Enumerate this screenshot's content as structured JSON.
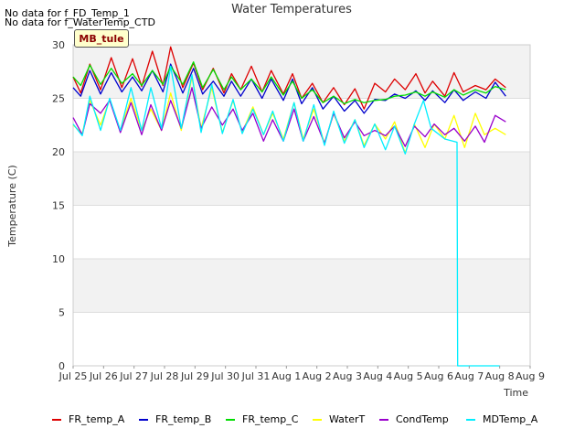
{
  "no_data_messages": [
    "No data for f_FD_Temp_1",
    "No data for f_WaterTemp_CTD"
  ],
  "site_label": "MB_tule",
  "chart_data": {
    "type": "line",
    "title": "Water Temperatures",
    "xlabel": "Time",
    "ylabel": "Temperature (C)",
    "ylim": [
      0,
      30
    ],
    "xlim": [
      0,
      15
    ],
    "x_tick_labels": [
      "Jul 25",
      "Jul 26",
      "Jul 27",
      "Jul 28",
      "Jul 29",
      "Jul 30",
      "Jul 31",
      "Aug 1",
      "Aug 2",
      "Aug 3",
      "Aug 4",
      "Aug 5",
      "Aug 6",
      "Aug 7",
      "Aug 8",
      "Aug 9"
    ],
    "y_ticks": [
      0,
      5,
      10,
      15,
      20,
      25,
      30
    ],
    "background_bands": "alternating grey / white every 5 units",
    "x_units": "days since Jul 25",
    "legend_position": "bottom",
    "series": [
      {
        "name": "FR_temp_A",
        "color": "#dd0000",
        "x": [
          0,
          0.25,
          0.55,
          0.9,
          1.25,
          1.6,
          1.95,
          2.25,
          2.6,
          2.95,
          3.2,
          3.6,
          3.95,
          4.25,
          4.6,
          4.95,
          5.2,
          5.5,
          5.85,
          6.2,
          6.5,
          6.9,
          7.2,
          7.5,
          7.85,
          8.2,
          8.55,
          8.9,
          9.25,
          9.55,
          9.9,
          10.25,
          10.55,
          10.9,
          11.25,
          11.55,
          11.8,
          12.2,
          12.5,
          12.8,
          13.2,
          13.55,
          13.85,
          14.2
        ],
        "y": [
          27,
          25.5,
          28.2,
          25.8,
          28.8,
          26,
          28.7,
          26.1,
          29.4,
          26.2,
          29.8,
          26,
          28.3,
          25.8,
          27.8,
          25.5,
          27.3,
          25.8,
          28,
          25.6,
          27.6,
          25.4,
          27.3,
          25,
          26.4,
          24.6,
          26,
          24.4,
          25.9,
          24,
          26.4,
          25.6,
          26.8,
          25.8,
          27.3,
          25.5,
          26.6,
          25.2,
          27.4,
          25.6,
          26.2,
          25.8,
          26.8,
          26
        ]
      },
      {
        "name": "FR_temp_B",
        "color": "#0000cc",
        "x": [
          0,
          0.25,
          0.55,
          0.9,
          1.25,
          1.6,
          1.95,
          2.25,
          2.6,
          2.95,
          3.2,
          3.6,
          3.95,
          4.25,
          4.6,
          4.95,
          5.2,
          5.5,
          5.85,
          6.2,
          6.5,
          6.9,
          7.2,
          7.5,
          7.85,
          8.2,
          8.55,
          8.9,
          9.25,
          9.55,
          9.9,
          10.25,
          10.55,
          10.9,
          11.25,
          11.55,
          11.8,
          12.2,
          12.5,
          12.8,
          13.2,
          13.55,
          13.85,
          14.2
        ],
        "y": [
          26,
          25.2,
          27.6,
          25.4,
          27.4,
          25.6,
          27,
          25.7,
          27.6,
          25.6,
          28.2,
          25.5,
          27.8,
          25.4,
          26.6,
          25.2,
          26.6,
          25.2,
          26.8,
          25,
          26.8,
          24.8,
          26.8,
          24.5,
          26,
          24,
          25.2,
          23.8,
          24.8,
          23.6,
          24.9,
          24.8,
          25.4,
          25,
          25.7,
          24.8,
          25.7,
          24.6,
          25.8,
          24.8,
          25.6,
          25,
          26.5,
          25.2
        ]
      },
      {
        "name": "FR_temp_C",
        "color": "#00dd00",
        "x": [
          0,
          0.25,
          0.55,
          0.9,
          1.25,
          1.6,
          1.95,
          2.25,
          2.6,
          2.95,
          3.2,
          3.6,
          3.95,
          4.25,
          4.6,
          4.95,
          5.2,
          5.5,
          5.85,
          6.2,
          6.5,
          6.9,
          7.2,
          7.5,
          7.85,
          8.2,
          8.55,
          8.9,
          9.25,
          9.55,
          9.9,
          10.25,
          10.55,
          10.9,
          11.25,
          11.55,
          11.8,
          12.2,
          12.5,
          12.8,
          13.2,
          13.55,
          13.85,
          14.2
        ],
        "y": [
          27,
          26.2,
          28.1,
          26.3,
          27.8,
          26.4,
          27.3,
          26.2,
          27.6,
          26.3,
          28,
          26.3,
          28.4,
          26,
          27.7,
          25.8,
          27,
          25.8,
          26.8,
          25.6,
          27,
          25.3,
          26.6,
          25,
          25.8,
          24.6,
          25.2,
          24.5,
          24.9,
          24.6,
          24.8,
          24.9,
          25.2,
          25.3,
          25.6,
          25.2,
          25.6,
          25.1,
          25.8,
          25.3,
          25.8,
          25.5,
          26.1,
          25.8
        ]
      },
      {
        "name": "WaterT",
        "color": "#ffff00",
        "x": [
          0,
          0.3,
          0.55,
          0.9,
          1.2,
          1.55,
          1.9,
          2.25,
          2.55,
          2.9,
          3.2,
          3.55,
          3.9,
          4.2,
          4.55,
          4.9,
          5.25,
          5.55,
          5.9,
          6.25,
          6.55,
          6.9,
          7.25,
          7.55,
          7.9,
          8.25,
          8.55,
          8.9,
          9.25,
          9.55,
          9.9,
          10.25,
          10.55,
          10.9,
          11.2,
          11.55,
          11.85,
          12.2,
          12.5,
          12.85,
          13.2,
          13.5,
          13.85,
          14.2
        ],
        "y": [
          22.5,
          21.7,
          24.8,
          22.5,
          24.9,
          22,
          25,
          22,
          24,
          22,
          25.5,
          22,
          27,
          22.2,
          26,
          21.8,
          24.8,
          21.8,
          24.2,
          21.6,
          23.6,
          21.2,
          24.6,
          21.2,
          24,
          20.8,
          23.6,
          21,
          23,
          20.6,
          22.6,
          21.2,
          22.8,
          19.9,
          22.6,
          20.4,
          22.6,
          21.2,
          23.4,
          20.4,
          23.6,
          21.6,
          22.2,
          21.6
        ]
      },
      {
        "name": "CondTemp",
        "color": "#9900cc",
        "x": [
          0,
          0.3,
          0.55,
          0.9,
          1.2,
          1.55,
          1.9,
          2.25,
          2.55,
          2.9,
          3.2,
          3.55,
          3.9,
          4.2,
          4.55,
          4.9,
          5.25,
          5.55,
          5.9,
          6.25,
          6.55,
          6.9,
          7.25,
          7.55,
          7.9,
          8.25,
          8.55,
          8.9,
          9.25,
          9.55,
          9.9,
          10.25,
          10.55,
          10.9,
          11.2,
          11.55,
          11.85,
          12.2,
          12.5,
          12.85,
          13.2,
          13.5,
          13.85,
          14.2
        ],
        "y": [
          23.2,
          21.6,
          24.5,
          23.6,
          24.8,
          21.8,
          24.6,
          21.6,
          24.4,
          22,
          24.8,
          22.2,
          26,
          22.2,
          24.2,
          22.5,
          24,
          22,
          23.6,
          21,
          23,
          21,
          24,
          21,
          23.3,
          20.8,
          23.6,
          21.3,
          22.8,
          21.5,
          22,
          21.5,
          22.4,
          20.5,
          22.4,
          21.4,
          22.6,
          21.6,
          22.2,
          21,
          22.4,
          20.9,
          23.4,
          22.8
        ]
      },
      {
        "name": "MDTemp_A",
        "color": "#00eeff",
        "x": [
          0,
          0.3,
          0.55,
          0.9,
          1.2,
          1.55,
          1.9,
          2.25,
          2.55,
          2.9,
          3.2,
          3.55,
          3.9,
          4.2,
          4.55,
          4.9,
          5.25,
          5.55,
          5.9,
          6.25,
          6.55,
          6.9,
          7.25,
          7.55,
          7.9,
          8.25,
          8.55,
          8.9,
          9.25,
          9.55,
          9.9,
          10.25,
          10.55,
          10.9,
          11.2,
          11.5,
          11.75,
          12.2,
          12.6,
          12.62,
          13,
          13.5,
          14
        ],
        "y": [
          22.6,
          21.5,
          25.2,
          22,
          25,
          22,
          26,
          22,
          26,
          22.2,
          28,
          22.2,
          27.2,
          21.8,
          26.3,
          21.7,
          24.9,
          21.7,
          24,
          21.6,
          23.8,
          21,
          24.6,
          21,
          24.4,
          20.6,
          23.8,
          20.8,
          23,
          20.4,
          22.6,
          20.2,
          22.4,
          19.8,
          22.6,
          24.8,
          22.2,
          21.2,
          20.9,
          0,
          0,
          0,
          0
        ]
      }
    ]
  }
}
